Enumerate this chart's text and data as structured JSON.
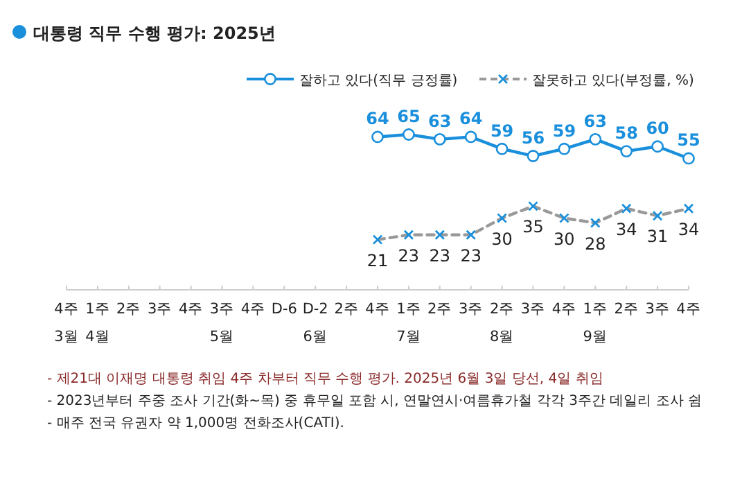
{
  "chart_data": {
    "type": "line",
    "title": "대통령 직무 수행 평가: 2025년",
    "categories": [
      "4주\n3월",
      "1주\n4월",
      "2주",
      "3주",
      "4주",
      "3주\n5월",
      "4주",
      "D-6",
      "D-2\n6월",
      "2주",
      "4주",
      "1주\n7월",
      "2주",
      "3주",
      "2주\n8월",
      "3주",
      "4주",
      "1주\n9월",
      "2주",
      "3주",
      "4주"
    ],
    "series": [
      {
        "name": "잘하고 있다(직무 긍정률)",
        "color": "#1a8fdc",
        "marker": "circle",
        "line_style": "solid",
        "values": [
          null,
          null,
          null,
          null,
          null,
          null,
          null,
          null,
          null,
          null,
          64,
          65,
          63,
          64,
          59,
          56,
          59,
          63,
          58,
          60,
          55
        ]
      },
      {
        "name": "잘못하고 있다(부정률, %)",
        "color": "#999999",
        "marker": "cross",
        "line_style": "dashed",
        "values": [
          null,
          null,
          null,
          null,
          null,
          null,
          null,
          null,
          null,
          null,
          21,
          23,
          23,
          23,
          30,
          35,
          30,
          28,
          34,
          31,
          34
        ]
      }
    ],
    "tick_labels": "x",
    "data_labels": true,
    "legend": "top right",
    "annotations": [
      "- 제21대 이재명 대통령 취임 4주 차부터 직무 수행 평가. 2025년 6월 3일 당선, 4일 취임",
      "- 2023년부터 주중 조사 기간(화~목) 중 휴무일 포함 시, 연말연시·여름휴가철 각각 3주간 데일리 조사 쉼",
      "- 매주 전국 유권자 약 1,000명 전화조사(CATI)."
    ]
  }
}
